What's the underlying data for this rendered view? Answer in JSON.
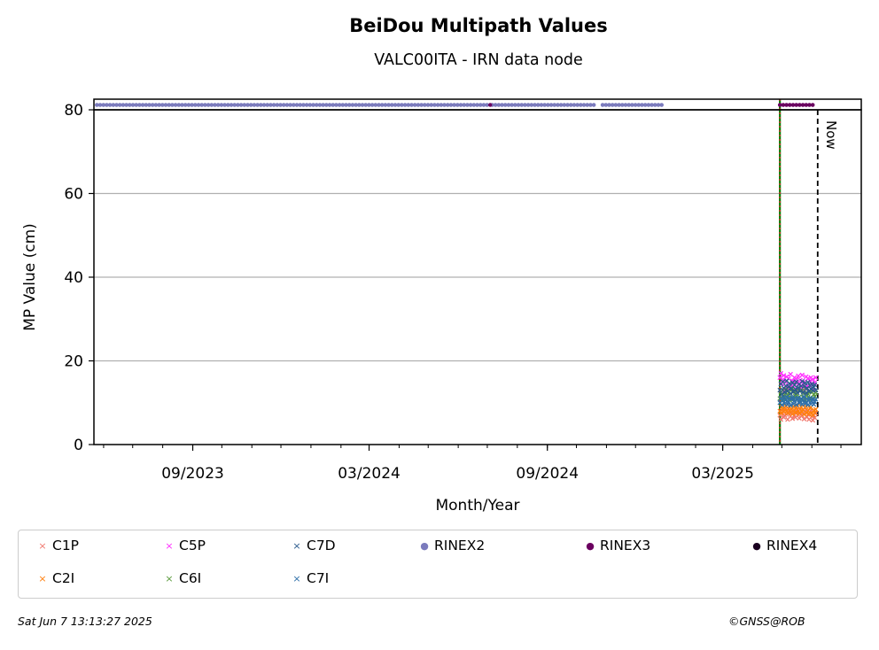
{
  "title": "BeiDou Multipath Values",
  "subtitle": "VALC00ITA - IRN data node",
  "footer": {
    "timestamp": "Sat Jun  7 13:13:27 2025",
    "credit": "©GNSS@ROB"
  },
  "colors": {
    "C1P": "#f0786e",
    "C2I": "#ff7f0e",
    "C5P": "#ff2eff",
    "C6I": "#5a9a3c",
    "C7D": "#2a5a8c",
    "C7I": "#2e6fa8",
    "RINEX2": "#7b7bbd",
    "RINEX3": "#6b0060",
    "RINEX4": "#1a0020",
    "green_line": "#008000",
    "red_line": "#d62728",
    "grid": "#b0b0b0"
  },
  "chart_data": {
    "type": "scatter",
    "title": "BeiDou Multipath Values",
    "subtitle": "VALC00ITA - IRN data node",
    "xlabel": "Month/Year",
    "ylabel": "MP Value (cm)",
    "ylim": [
      0,
      80
    ],
    "yticks": [
      0,
      20,
      40,
      60,
      80
    ],
    "xlim": [
      "2023-05-22",
      "2025-07-22"
    ],
    "xticks": [
      {
        "date": "2023-09-01",
        "label": "09/2023"
      },
      {
        "date": "2024-03-01",
        "label": "03/2024"
      },
      {
        "date": "2024-09-01",
        "label": "09/2024"
      },
      {
        "date": "2025-03-01",
        "label": "03/2025"
      }
    ],
    "grid": "horizontal",
    "legend_position": "bottom",
    "now_label": "Now",
    "now_date": "2025-06-07",
    "vertical_markers": [
      {
        "date": "2025-04-29",
        "style": "green solid + red dotted"
      }
    ],
    "rinex_availability": {
      "y": 81.5,
      "RINEX2": [
        [
          "2023-05-25",
          "2024-07-03"
        ],
        [
          "2024-07-06",
          "2024-10-22"
        ],
        [
          "2024-10-28",
          "2024-12-28"
        ]
      ],
      "RINEX3": [
        [
          "2024-07-04",
          "2024-07-04"
        ],
        [
          "2025-04-29",
          "2025-06-04"
        ]
      ],
      "RINEX4": []
    },
    "mp_date_range": [
      "2025-04-29",
      "2025-06-05"
    ],
    "series": [
      {
        "name": "C1P",
        "marker": "x",
        "values": [
          7.0,
          6.0,
          7.5,
          8.0,
          6.5,
          7.0,
          8.5,
          7.2,
          6.0,
          7.8,
          8.2,
          6.8,
          7.5,
          6.2,
          8.0,
          7.0,
          6.5,
          7.8,
          8.4,
          7.1,
          6.3,
          7.6,
          8.1,
          6.9,
          7.4,
          6.1,
          7.9,
          8.3,
          6.6,
          7.2,
          6.0,
          7.7,
          8.0,
          6.7,
          5.8,
          7.0,
          6.4,
          7.5
        ]
      },
      {
        "name": "C2I",
        "marker": "x",
        "values": [
          8.0,
          7.5,
          9.0,
          8.5,
          7.8,
          8.8,
          9.2,
          8.0,
          7.5,
          8.6,
          9.0,
          7.7,
          8.4,
          7.3,
          9.1,
          8.2,
          7.6,
          8.9,
          9.3,
          8.0,
          7.4,
          8.5,
          9.0,
          7.8,
          8.3,
          7.2,
          8.8,
          9.1,
          7.6,
          8.1,
          7.3,
          8.7,
          8.9,
          7.5,
          7.0,
          8.2,
          7.6,
          8.4
        ]
      },
      {
        "name": "C5P",
        "marker": "x",
        "values": [
          16.0,
          17.0,
          14.5,
          15.5,
          16.5,
          13.0,
          15.0,
          16.2,
          14.0,
          15.8,
          13.5,
          16.8,
          14.2,
          15.2,
          13.8,
          16.0,
          14.8,
          15.6,
          13.2,
          16.4,
          14.6,
          15.4,
          13.6,
          16.6,
          14.4,
          15.0,
          13.4,
          16.2,
          14.0,
          15.8,
          13.8,
          15.2,
          16.0,
          14.2,
          15.6,
          13.0,
          14.8,
          16.0
        ]
      },
      {
        "name": "C6I",
        "marker": "x",
        "values": [
          11.0,
          12.5,
          10.5,
          13.0,
          11.5,
          12.0,
          10.8,
          13.2,
          11.8,
          12.4,
          10.6,
          13.4,
          11.2,
          12.6,
          10.9,
          13.0,
          11.6,
          12.2,
          10.7,
          13.1,
          11.4,
          12.8,
          10.8,
          12.9,
          11.3,
          12.3,
          10.6,
          13.3,
          11.7,
          12.1,
          10.9,
          12.7,
          11.1,
          12.5,
          10.8,
          12.0,
          11.5,
          12.4
        ]
      },
      {
        "name": "C7D",
        "marker": "x",
        "values": [
          13.0,
          14.5,
          12.0,
          15.0,
          13.5,
          12.5,
          14.0,
          15.2,
          12.8,
          13.8,
          14.6,
          12.2,
          13.4,
          14.8,
          12.6,
          14.2,
          13.2,
          15.0,
          12.4,
          13.6,
          14.4,
          12.8,
          14.0,
          15.1,
          12.5,
          13.9,
          14.7,
          12.3,
          13.5,
          14.9,
          12.7,
          14.1,
          13.3,
          14.5,
          12.9,
          13.7,
          14.3,
          13.0
        ]
      },
      {
        "name": "C7I",
        "marker": "x",
        "values": [
          10.0,
          11.0,
          9.5,
          10.5,
          11.2,
          9.8,
          10.6,
          11.4,
          9.6,
          10.2,
          11.0,
          9.4,
          10.8,
          11.3,
          9.7,
          10.4,
          11.1,
          9.5,
          10.7,
          11.2,
          9.9,
          10.3,
          11.0,
          9.6,
          10.6,
          11.4,
          9.8,
          10.1,
          10.9,
          9.5,
          10.5,
          11.1,
          9.7,
          10.4,
          11.0,
          9.6,
          10.2,
          10.8
        ]
      }
    ]
  },
  "legend": {
    "items": [
      {
        "label": "C1P",
        "marker": "×",
        "color": "#f0786e"
      },
      {
        "label": "C5P",
        "marker": "×",
        "color": "#ff2eff"
      },
      {
        "label": "C7D",
        "marker": "×",
        "color": "#2a5a8c"
      },
      {
        "label": "RINEX2",
        "marker": "●",
        "color": "#7b7bbd"
      },
      {
        "label": "RINEX3",
        "marker": "●",
        "color": "#6b0060"
      },
      {
        "label": "RINEX4",
        "marker": "●",
        "color": "#1a0020"
      },
      {
        "label": "C2I",
        "marker": "×",
        "color": "#ff7f0e"
      },
      {
        "label": "C6I",
        "marker": "×",
        "color": "#5a9a3c"
      },
      {
        "label": "C7I",
        "marker": "×",
        "color": "#2e6fa8"
      }
    ]
  }
}
